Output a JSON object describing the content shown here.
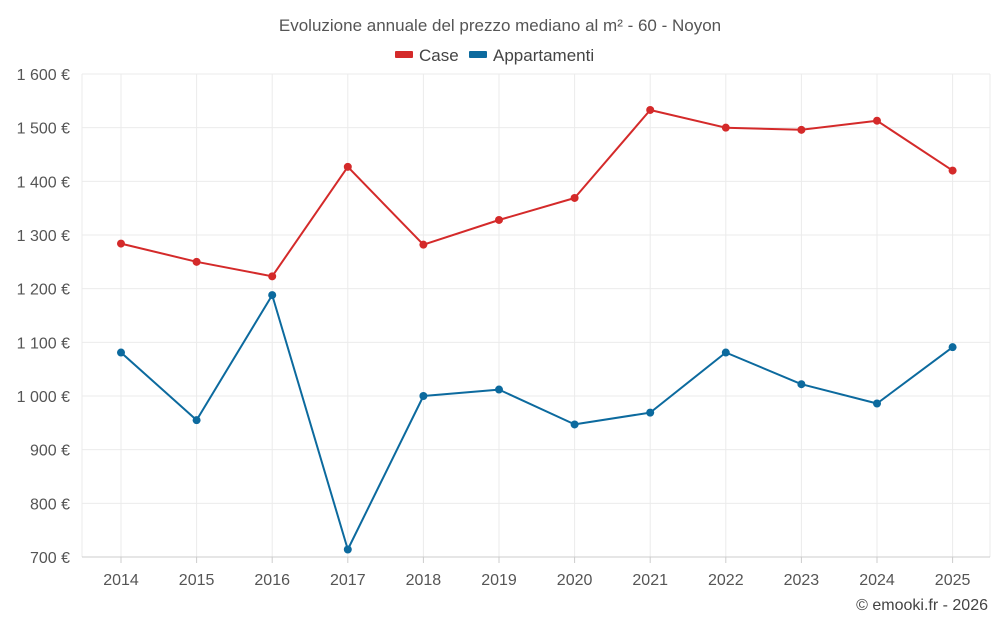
{
  "chart_data": {
    "type": "line",
    "title": "Evoluzione annuale del prezzo mediano al m² - 60 - Noyon",
    "categories": [
      "2014",
      "2015",
      "2016",
      "2017",
      "2018",
      "2019",
      "2020",
      "2021",
      "2022",
      "2023",
      "2024",
      "2025"
    ],
    "series": [
      {
        "name": "Case",
        "color": "#d42a2a",
        "values": [
          1284,
          1250,
          1223,
          1427,
          1282,
          1328,
          1369,
          1533,
          1500,
          1496,
          1513,
          1420
        ]
      },
      {
        "name": "Appartamenti",
        "color": "#0c6a9e",
        "values": [
          1081,
          955,
          1188,
          714,
          1000,
          1012,
          947,
          969,
          1081,
          1022,
          986,
          1091
        ]
      }
    ],
    "ylim": [
      700,
      1600
    ],
    "y_ticks": [
      700,
      800,
      900,
      1000,
      1100,
      1200,
      1300,
      1400,
      1500,
      1600
    ],
    "y_tick_labels": [
      "700 €",
      "800 €",
      "900 €",
      "1 000 €",
      "1 100 €",
      "1 200 €",
      "1 300 €",
      "1 400 €",
      "1 500 €",
      "1 600 €"
    ],
    "xlabel": "",
    "ylabel": "",
    "grid": true,
    "legend_position": "top-center"
  },
  "credit": "© emooki.fr - 2026"
}
